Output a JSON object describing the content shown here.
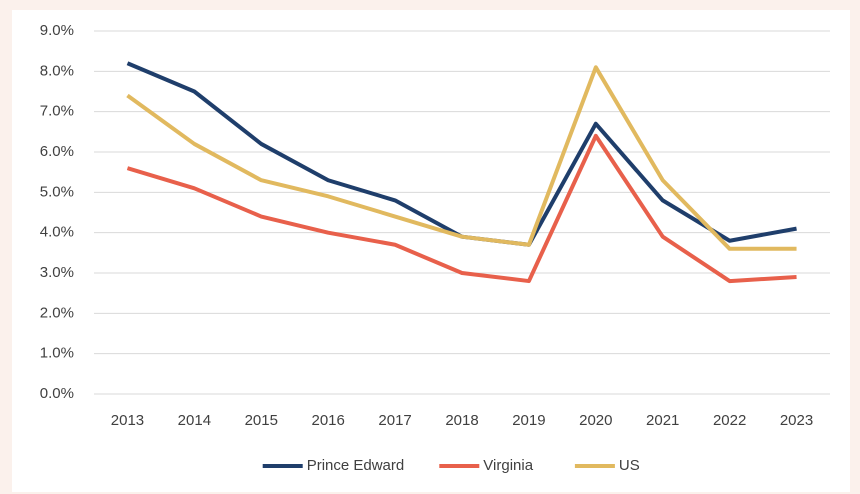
{
  "chart_data": {
    "type": "line",
    "categories": [
      "2013",
      "2014",
      "2015",
      "2016",
      "2017",
      "2018",
      "2019",
      "2020",
      "2021",
      "2022",
      "2023"
    ],
    "series": [
      {
        "name": "Prince Edward",
        "color": "#1f3e6b",
        "values": [
          8.2,
          7.5,
          6.2,
          5.3,
          4.8,
          3.9,
          3.7,
          6.7,
          4.8,
          3.8,
          4.1
        ]
      },
      {
        "name": "Virginia",
        "color": "#e8604b",
        "values": [
          5.6,
          5.1,
          4.4,
          4.0,
          3.7,
          3.0,
          2.8,
          6.4,
          3.9,
          2.8,
          2.9
        ]
      },
      {
        "name": "US",
        "color": "#e1b95f",
        "values": [
          7.4,
          6.2,
          5.3,
          4.9,
          4.4,
          3.9,
          3.7,
          8.1,
          5.3,
          3.6,
          3.6
        ]
      }
    ],
    "ylim": [
      0,
      9
    ],
    "yticks": [
      {
        "value": 0,
        "label": "0.0%"
      },
      {
        "value": 1,
        "label": "1.0%"
      },
      {
        "value": 2,
        "label": "2.0%"
      },
      {
        "value": 3,
        "label": "3.0%"
      },
      {
        "value": 4,
        "label": "4.0%"
      },
      {
        "value": 5,
        "label": "5.0%"
      },
      {
        "value": 6,
        "label": "6.0%"
      },
      {
        "value": 7,
        "label": "7.0%"
      },
      {
        "value": 8,
        "label": "8.0%"
      },
      {
        "value": 9,
        "label": "9.0%"
      }
    ],
    "grid": true,
    "legend": "bottom"
  }
}
